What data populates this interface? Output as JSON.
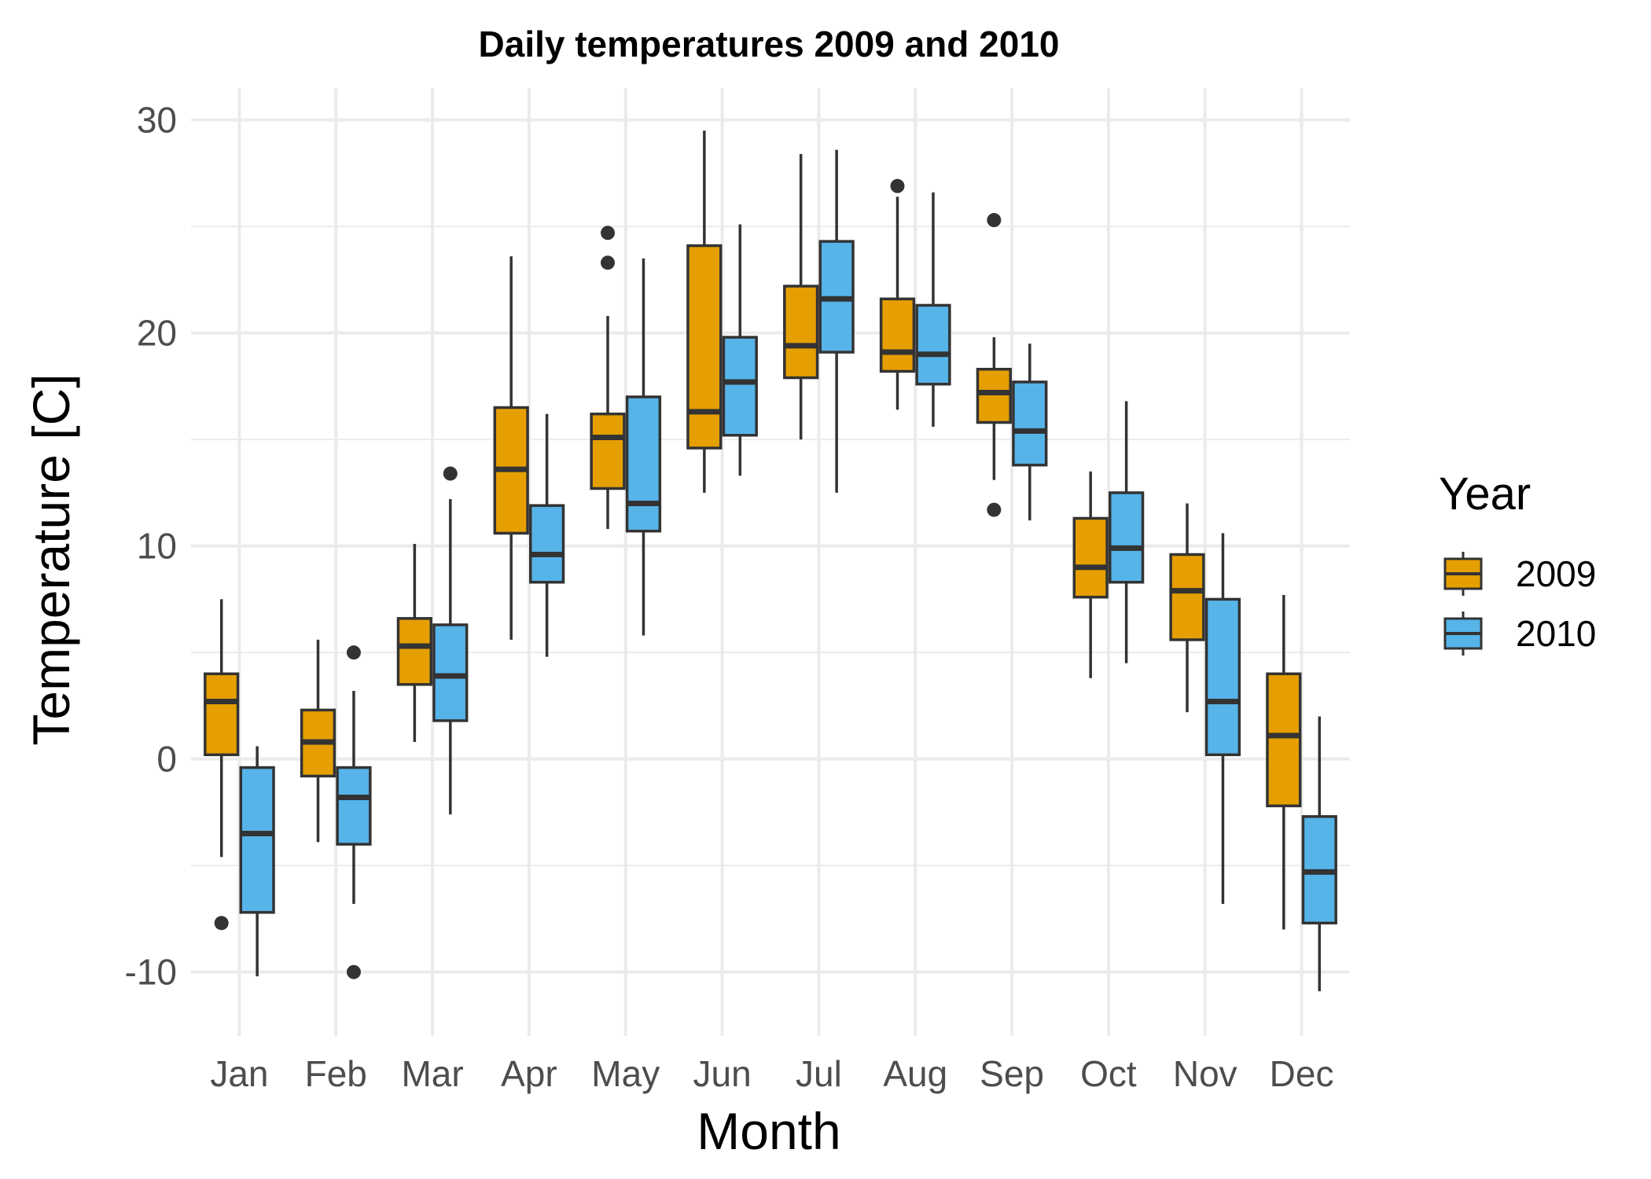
{
  "chart_data": {
    "type": "boxplot",
    "title": "Daily temperatures 2009 and 2010",
    "xlabel": "Month",
    "ylabel": "Temperature [C]",
    "ylim": [
      -13,
      31.5
    ],
    "yticks": [
      -10,
      0,
      10,
      20,
      30
    ],
    "ytick_labels": [
      "-10",
      "0",
      "10",
      "20",
      "30"
    ],
    "grid": true,
    "legend": {
      "title": "Year",
      "position": "right"
    },
    "categories": [
      "Jan",
      "Feb",
      "Mar",
      "Apr",
      "May",
      "Jun",
      "Jul",
      "Aug",
      "Sep",
      "Oct",
      "Nov",
      "Dec"
    ],
    "series": [
      {
        "name": "2009",
        "color": "#E69F00",
        "boxes": [
          {
            "min": -4.6,
            "q1": 0.2,
            "median": 2.7,
            "q3": 4.0,
            "max": 7.5,
            "outliers": [
              -7.7
            ]
          },
          {
            "min": -3.9,
            "q1": -0.8,
            "median": 0.8,
            "q3": 2.3,
            "max": 5.6,
            "outliers": []
          },
          {
            "min": 0.8,
            "q1": 3.5,
            "median": 5.3,
            "q3": 6.6,
            "max": 10.1,
            "outliers": []
          },
          {
            "min": 5.6,
            "q1": 10.6,
            "median": 13.6,
            "q3": 16.5,
            "max": 23.6,
            "outliers": []
          },
          {
            "min": 10.8,
            "q1": 12.7,
            "median": 15.1,
            "q3": 16.2,
            "max": 20.8,
            "outliers": [
              23.3,
              24.7
            ]
          },
          {
            "min": 12.5,
            "q1": 14.6,
            "median": 16.3,
            "q3": 24.1,
            "max": 29.5,
            "outliers": []
          },
          {
            "min": 15.0,
            "q1": 17.9,
            "median": 19.4,
            "q3": 22.2,
            "max": 28.4,
            "outliers": []
          },
          {
            "min": 16.4,
            "q1": 18.2,
            "median": 19.1,
            "q3": 21.6,
            "max": 26.4,
            "outliers": [
              26.9
            ]
          },
          {
            "min": 13.1,
            "q1": 15.8,
            "median": 17.2,
            "q3": 18.3,
            "max": 19.8,
            "outliers": [
              25.3,
              11.7
            ]
          },
          {
            "min": 3.8,
            "q1": 7.6,
            "median": 9.0,
            "q3": 11.3,
            "max": 13.5,
            "outliers": []
          },
          {
            "min": 2.2,
            "q1": 5.6,
            "median": 7.9,
            "q3": 9.6,
            "max": 12.0,
            "outliers": []
          },
          {
            "min": -8.0,
            "q1": -2.2,
            "median": 1.1,
            "q3": 4.0,
            "max": 7.7,
            "outliers": []
          }
        ]
      },
      {
        "name": "2010",
        "color": "#56B4E9",
        "boxes": [
          {
            "min": -10.2,
            "q1": -7.2,
            "median": -3.5,
            "q3": -0.4,
            "max": 0.6,
            "outliers": []
          },
          {
            "min": -6.8,
            "q1": -4.0,
            "median": -1.8,
            "q3": -0.4,
            "max": 3.2,
            "outliers": [
              5.0,
              -10.0
            ]
          },
          {
            "min": -2.6,
            "q1": 1.8,
            "median": 3.9,
            "q3": 6.3,
            "max": 12.2,
            "outliers": [
              13.4
            ]
          },
          {
            "min": 4.8,
            "q1": 8.3,
            "median": 9.6,
            "q3": 11.9,
            "max": 16.2,
            "outliers": []
          },
          {
            "min": 5.8,
            "q1": 10.7,
            "median": 12.0,
            "q3": 17.0,
            "max": 23.5,
            "outliers": []
          },
          {
            "min": 13.3,
            "q1": 15.2,
            "median": 17.7,
            "q3": 19.8,
            "max": 25.1,
            "outliers": []
          },
          {
            "min": 12.5,
            "q1": 19.1,
            "median": 21.6,
            "q3": 24.3,
            "max": 28.6,
            "outliers": []
          },
          {
            "min": 15.6,
            "q1": 17.6,
            "median": 19.0,
            "q3": 21.3,
            "max": 26.6,
            "outliers": []
          },
          {
            "min": 11.2,
            "q1": 13.8,
            "median": 15.4,
            "q3": 17.7,
            "max": 19.5,
            "outliers": []
          },
          {
            "min": 4.5,
            "q1": 8.3,
            "median": 9.9,
            "q3": 12.5,
            "max": 16.8,
            "outliers": []
          },
          {
            "min": -6.8,
            "q1": 0.2,
            "median": 2.7,
            "q3": 7.5,
            "max": 10.6,
            "outliers": []
          },
          {
            "min": -10.9,
            "q1": -7.7,
            "median": -5.3,
            "q3": -2.7,
            "max": 2.0,
            "outliers": []
          }
        ]
      }
    ]
  }
}
